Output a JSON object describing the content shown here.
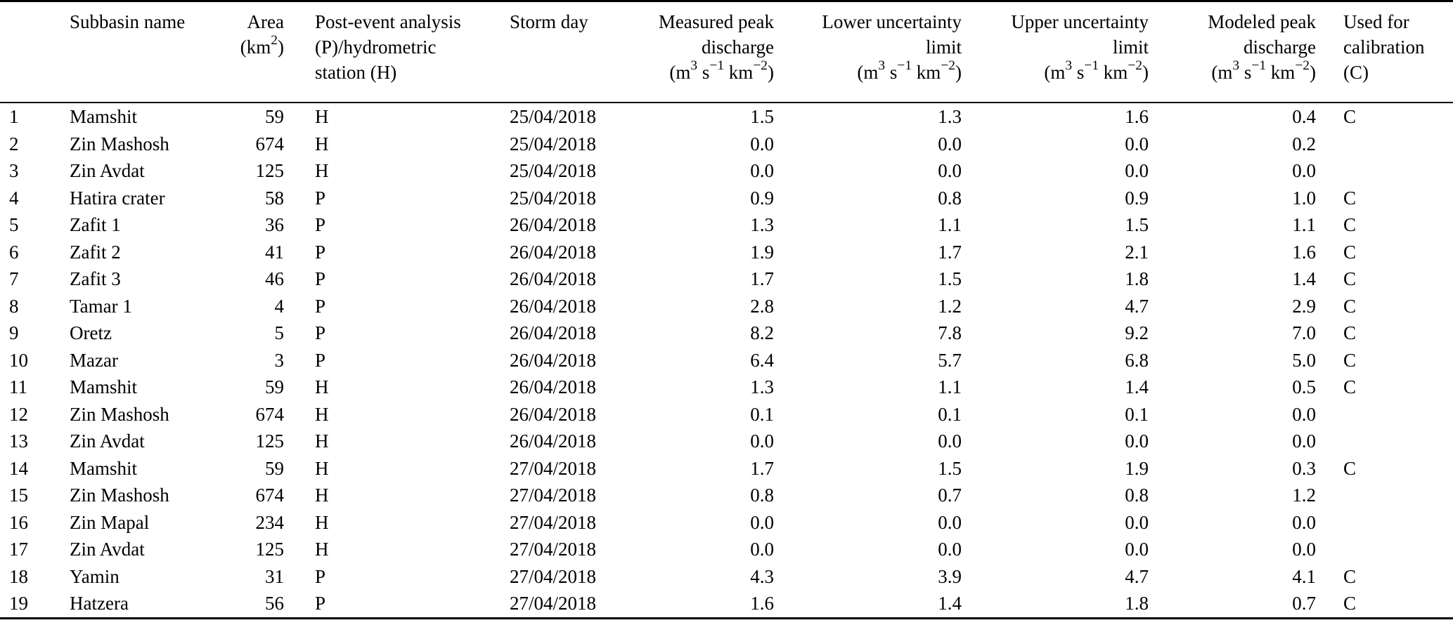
{
  "table": {
    "headers": {
      "subbasin": "Subbasin name",
      "area_line1": "Area",
      "area_unit": {
        "p1": "(km",
        "sup": "2",
        "p2": ")"
      },
      "ph_line1": "Post-event analysis",
      "ph_line2": "(P)/hydrometric",
      "ph_line3": "station (H)",
      "storm": "Storm day",
      "measured_line1": "Measured peak",
      "measured_line2": "discharge",
      "lower_line1": "Lower uncertainty",
      "lower_line2": "limit",
      "upper_line1": "Upper uncertainty",
      "upper_line2": "limit",
      "modeled_line1": "Modeled peak",
      "modeled_line2": "discharge",
      "calib_line1": "Used for",
      "calib_line2": "calibration",
      "calib_line3": "(C)",
      "discharge_unit": {
        "p1": "(m",
        "s1": "3",
        "p2": " s",
        "s2": "−1",
        "p3": " km",
        "s3": "−2",
        "p4": ")"
      }
    },
    "column_names": [
      "row-number",
      "subbasin-name",
      "area",
      "analysis-type",
      "storm-day",
      "measured-peak-discharge",
      "lower-uncertainty-limit",
      "upper-uncertainty-limit",
      "modeled-peak-discharge",
      "used-for-calibration"
    ],
    "rows": [
      [
        "1",
        "Mamshit",
        "59",
        "H",
        "25/04/2018",
        "1.5",
        "1.3",
        "1.6",
        "0.4",
        "C"
      ],
      [
        "2",
        "Zin Mashosh",
        "674",
        "H",
        "25/04/2018",
        "0.0",
        "0.0",
        "0.0",
        "0.2",
        ""
      ],
      [
        "3",
        "Zin Avdat",
        "125",
        "H",
        "25/04/2018",
        "0.0",
        "0.0",
        "0.0",
        "0.0",
        ""
      ],
      [
        "4",
        "Hatira crater",
        "58",
        "P",
        "25/04/2018",
        "0.9",
        "0.8",
        "0.9",
        "1.0",
        "C"
      ],
      [
        "5",
        "Zafit 1",
        "36",
        "P",
        "26/04/2018",
        "1.3",
        "1.1",
        "1.5",
        "1.1",
        "C"
      ],
      [
        "6",
        "Zafit 2",
        "41",
        "P",
        "26/04/2018",
        "1.9",
        "1.7",
        "2.1",
        "1.6",
        "C"
      ],
      [
        "7",
        "Zafit 3",
        "46",
        "P",
        "26/04/2018",
        "1.7",
        "1.5",
        "1.8",
        "1.4",
        "C"
      ],
      [
        "8",
        "Tamar 1",
        "4",
        "P",
        "26/04/2018",
        "2.8",
        "1.2",
        "4.7",
        "2.9",
        "C"
      ],
      [
        "9",
        "Oretz",
        "5",
        "P",
        "26/04/2018",
        "8.2",
        "7.8",
        "9.2",
        "7.0",
        "C"
      ],
      [
        "10",
        "Mazar",
        "3",
        "P",
        "26/04/2018",
        "6.4",
        "5.7",
        "6.8",
        "5.0",
        "C"
      ],
      [
        "11",
        "Mamshit",
        "59",
        "H",
        "26/04/2018",
        "1.3",
        "1.1",
        "1.4",
        "0.5",
        "C"
      ],
      [
        "12",
        "Zin Mashosh",
        "674",
        "H",
        "26/04/2018",
        "0.1",
        "0.1",
        "0.1",
        "0.0",
        ""
      ],
      [
        "13",
        "Zin Avdat",
        "125",
        "H",
        "26/04/2018",
        "0.0",
        "0.0",
        "0.0",
        "0.0",
        ""
      ],
      [
        "14",
        "Mamshit",
        "59",
        "H",
        "27/04/2018",
        "1.7",
        "1.5",
        "1.9",
        "0.3",
        "C"
      ],
      [
        "15",
        "Zin Mashosh",
        "674",
        "H",
        "27/04/2018",
        "0.8",
        "0.7",
        "0.8",
        "1.2",
        ""
      ],
      [
        "16",
        "Zin Mapal",
        "234",
        "H",
        "27/04/2018",
        "0.0",
        "0.0",
        "0.0",
        "0.0",
        ""
      ],
      [
        "17",
        "Zin Avdat",
        "125",
        "H",
        "27/04/2018",
        "0.0",
        "0.0",
        "0.0",
        "0.0",
        ""
      ],
      [
        "18",
        "Yamin",
        "31",
        "P",
        "27/04/2018",
        "4.3",
        "3.9",
        "4.7",
        "4.1",
        "C"
      ],
      [
        "19",
        "Hatzera",
        "56",
        "P",
        "27/04/2018",
        "1.6",
        "1.4",
        "1.8",
        "0.7",
        "C"
      ]
    ]
  }
}
